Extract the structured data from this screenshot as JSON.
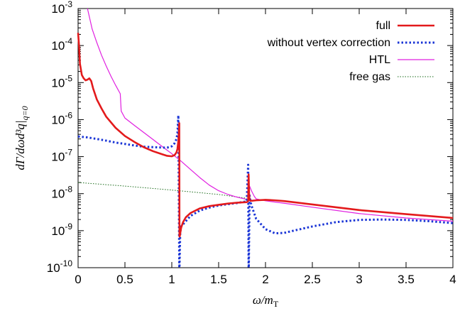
{
  "chart_data": {
    "type": "line",
    "title": "",
    "xlabel": "ω/m_T",
    "ylabel": "dΓ/dωd³q|_{q=0}",
    "xlim": [
      0,
      4
    ],
    "ylim": [
      1e-10,
      0.001
    ],
    "yscale": "log",
    "grid": false,
    "legend_position": "top-right",
    "x_ticks": [
      0,
      0.5,
      1,
      1.5,
      2,
      2.5,
      3,
      3.5,
      4
    ],
    "x_tick_labels": [
      "0",
      "0.5",
      "1",
      "1.5",
      "2",
      "2.5",
      "3",
      "3.5",
      "4"
    ],
    "y_ticks": [
      -10,
      -9,
      -8,
      -7,
      -6,
      -5,
      -4,
      -3
    ],
    "y_tick_labels": [
      "10^-10",
      "10^-9",
      "10^-8",
      "10^-7",
      "10^-6",
      "10^-5",
      "10^-4",
      "10^-3"
    ],
    "series": [
      {
        "name": "full",
        "color": "#e31a1c",
        "style": "solid",
        "x": [
          0.0,
          0.01,
          0.02,
          0.04,
          0.06,
          0.08,
          0.1,
          0.12,
          0.14,
          0.16,
          0.2,
          0.25,
          0.3,
          0.4,
          0.5,
          0.6,
          0.7,
          0.8,
          0.9,
          0.95,
          1.0,
          1.03,
          1.05,
          1.06,
          1.07,
          1.075,
          1.08,
          1.082,
          1.085,
          1.09,
          1.1,
          1.12,
          1.15,
          1.2,
          1.3,
          1.4,
          1.5,
          1.6,
          1.7,
          1.8,
          1.81,
          1.815,
          1.82,
          1.825,
          1.83,
          1.84,
          1.85,
          1.9,
          2.0,
          2.1,
          2.2,
          2.5,
          3.0,
          3.5,
          4.0
        ],
        "y": [
          0.00022,
          0.0001,
          3.2e-05,
          1.6e-05,
          1.3e-05,
          1.15e-05,
          1.2e-05,
          1.3e-05,
          1.1e-05,
          7e-06,
          3.5e-06,
          2e-06,
          1.2e-06,
          6e-07,
          3.6e-07,
          2.5e-07,
          1.8e-07,
          1.4e-07,
          1.15e-07,
          1.05e-07,
          1.02e-07,
          1.1e-07,
          1.3e-07,
          1.6e-07,
          2.6e-07,
          4e-07,
          8e-07,
          7e-10,
          7e-10,
          8.5e-10,
          1.2e-09,
          1.7e-09,
          2.3e-09,
          3e-09,
          4e-09,
          4.6e-09,
          5e-09,
          5.4e-09,
          5.7e-09,
          5.9e-09,
          6e-09,
          6.5e-09,
          3.3e-08,
          1e-08,
          6.8e-09,
          6.4e-09,
          6.4e-09,
          6.6e-09,
          6.8e-09,
          6.6e-09,
          6.3e-09,
          5.1e-09,
          3.6e-09,
          2.8e-09,
          2.2e-09
        ]
      },
      {
        "name": "without vertex correction",
        "color": "#1a35d6",
        "style": "dotted",
        "x": [
          0.0,
          0.1,
          0.2,
          0.3,
          0.4,
          0.5,
          0.6,
          0.7,
          0.8,
          0.9,
          0.95,
          1.0,
          1.03,
          1.05,
          1.06,
          1.07,
          1.08,
          1.082,
          1.09,
          1.1,
          1.2,
          1.3,
          1.4,
          1.5,
          1.6,
          1.7,
          1.8,
          1.815,
          1.82,
          1.822,
          1.83,
          1.84,
          1.85,
          1.9,
          2.0,
          2.1,
          2.2,
          2.3,
          2.5,
          2.75,
          3.0,
          3.25,
          3.5,
          3.75,
          4.0
        ],
        "y": [
          3.5e-07,
          3.3e-07,
          3e-07,
          2.7e-07,
          2.4e-07,
          2.2e-07,
          2e-07,
          1.85e-07,
          1.8e-07,
          1.75e-07,
          1.75e-07,
          1.9e-07,
          2.3e-07,
          3e-07,
          4.2e-07,
          1.3e-06,
          1e-10,
          1e-10,
          9e-10,
          1.3e-09,
          2.5e-09,
          3.5e-09,
          4.2e-09,
          4.8e-09,
          5.2e-09,
          5.6e-09,
          6.2e-09,
          6e-08,
          1e-10,
          1e-10,
          9e-09,
          6.2e-09,
          4.8e-09,
          2.1e-09,
          1.1e-09,
          8.5e-10,
          8.7e-10,
          1e-09,
          1.3e-09,
          1.7e-09,
          1.95e-09,
          2e-09,
          1.95e-09,
          1.8e-09,
          1.6e-09
        ]
      },
      {
        "name": "HTL",
        "color": "#e020e0",
        "style": "solid-thin",
        "x": [
          0.1,
          0.15,
          0.2,
          0.25,
          0.3,
          0.35,
          0.4,
          0.45,
          0.46,
          0.5,
          0.6,
          0.7,
          0.8,
          0.9,
          1.0,
          1.1,
          1.2,
          1.3,
          1.4,
          1.5,
          1.6,
          1.7,
          1.8,
          1.82,
          1.83,
          1.85,
          1.88,
          1.9,
          2.0,
          2.2,
          2.5,
          3.0,
          3.5,
          4.0
        ],
        "y": [
          0.001,
          0.00028,
          0.00012,
          5.5e-05,
          2.8e-05,
          1.5e-05,
          8.5e-06,
          5e-06,
          1.7e-06,
          1.1e-06,
          7e-07,
          4.5e-07,
          2.9e-07,
          1.85e-07,
          1.2e-07,
          7.5e-08,
          4.5e-08,
          2.7e-08,
          1.7e-08,
          1.2e-08,
          9.5e-09,
          8e-09,
          7e-09,
          6.5e-09,
          1.6e-08,
          1.2e-08,
          8.5e-09,
          7.2e-09,
          6.4e-09,
          5.5e-09,
          4.3e-09,
          2.9e-09,
          2.2e-09,
          1.8e-09
        ]
      },
      {
        "name": "free gas",
        "color": "#1a6b1a",
        "style": "dotted-thin",
        "x": [
          0.0,
          0.5,
          1.0,
          1.5,
          1.8
        ],
        "y": [
          2e-08,
          1.6e-08,
          1.25e-08,
          9.5e-09,
          7.5e-09
        ]
      }
    ]
  }
}
